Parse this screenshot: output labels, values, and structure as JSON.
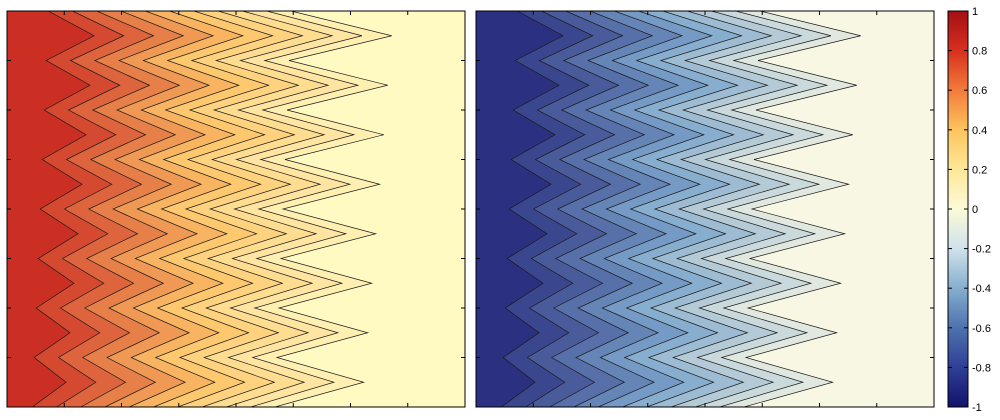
{
  "chart_data": [
    {
      "type": "contour",
      "panel": "left",
      "colormap": "yellow-orange-red",
      "colors": {
        "low": "#fff9c2",
        "mid": "#fec468",
        "high": "#c21418"
      },
      "value_range": [
        0,
        1
      ],
      "contour_lines": true,
      "wave_count": 8,
      "x_ticks": [],
      "y_ticks": []
    },
    {
      "type": "contour",
      "panel": "right",
      "colormap": "yellow-white-blue",
      "colors": {
        "low": "#f7f7e4",
        "mid": "#7ea7cd",
        "high": "#1c1c72"
      },
      "value_range": [
        -1,
        0
      ],
      "contour_lines": true,
      "wave_count": 8,
      "x_ticks": [],
      "y_ticks": []
    }
  ],
  "colorbar": {
    "ticks": [
      "1",
      "0.8",
      "0.6",
      "0.4",
      "0.2",
      "0",
      "-0.2",
      "-0.4",
      "-0.6",
      "-0.8",
      "-1"
    ],
    "range": [
      -1,
      1
    ],
    "stops": [
      {
        "value": -1.0,
        "color": "#13126b"
      },
      {
        "value": -0.8,
        "color": "#2f3f96"
      },
      {
        "value": -0.6,
        "color": "#4d72ae"
      },
      {
        "value": -0.4,
        "color": "#86aed0"
      },
      {
        "value": -0.2,
        "color": "#cfe2ec"
      },
      {
        "value": 0.0,
        "color": "#fcfad8"
      },
      {
        "value": 0.2,
        "color": "#fee897"
      },
      {
        "value": 0.4,
        "color": "#fdc45f"
      },
      {
        "value": 0.6,
        "color": "#f37b3a"
      },
      {
        "value": 0.8,
        "color": "#d7301f"
      },
      {
        "value": 1.0,
        "color": "#a50f15"
      }
    ]
  }
}
